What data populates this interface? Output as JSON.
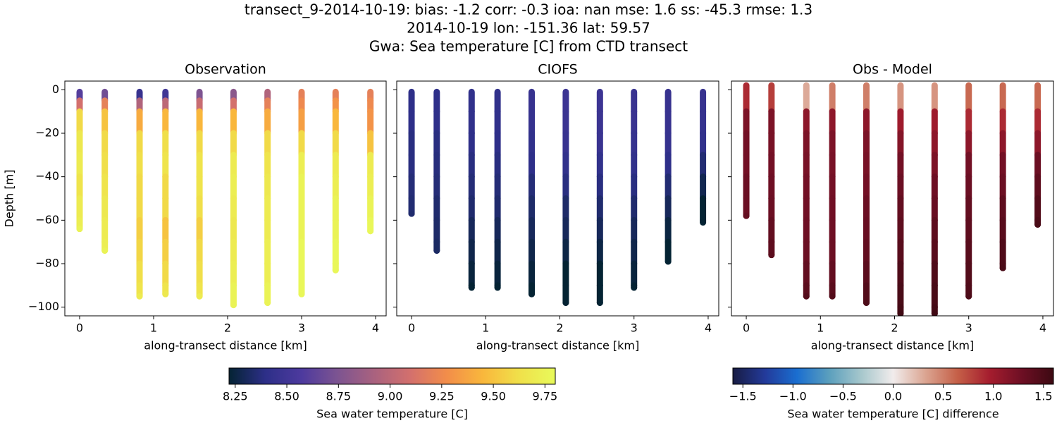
{
  "suptitle": [
    "transect_9-2014-10-19: bias: -1.2  corr: -0.3  ioa: nan  mse: 1.6  ss: -45.3  rmse: 1.3",
    "2014-10-19 lon: -151.36 lat: 59.57",
    "Gwa: Sea temperature [C] from CTD transect"
  ],
  "chart_data": [
    {
      "type": "scatter",
      "title": "Observation",
      "xlabel": "along-transect distance [km]",
      "ylabel": "Depth [m]",
      "colorbar": 0,
      "ytick_labels": true,
      "xlim": [
        -0.2,
        4.143
      ],
      "ylim": [
        -104,
        4
      ],
      "xticks": [
        0,
        1,
        2,
        3,
        4
      ],
      "yticks": [
        0,
        {
          "value": -20,
          "label": "−20"
        },
        {
          "value": -40,
          "label": "−40"
        },
        {
          "value": -60,
          "label": "−60"
        },
        {
          "value": -80,
          "label": "−80"
        },
        {
          "value": -100,
          "label": "−100"
        }
      ],
      "series": [
        {
          "x": 0,
          "y": [
            -1,
            -5,
            -10,
            -20,
            -30,
            -40,
            -50,
            -60,
            -64
          ],
          "values": [
            8.6,
            9.1,
            9.6,
            9.68,
            9.7,
            9.65,
            9.7,
            9.72,
            9.75
          ]
        },
        {
          "x": 0.34,
          "y": [
            -1,
            -5,
            -10,
            -20,
            -30,
            -40,
            -50,
            -60,
            -70,
            -74
          ],
          "values": [
            8.7,
            9.2,
            9.5,
            9.6,
            9.62,
            9.65,
            9.68,
            9.7,
            9.72,
            9.75
          ]
        },
        {
          "x": 0.81,
          "y": [
            -1,
            -5,
            -10,
            -20,
            -30,
            -40,
            -50,
            -60,
            -70,
            -80,
            -90,
            -95
          ],
          "values": [
            8.45,
            8.95,
            9.4,
            9.6,
            9.62,
            9.6,
            9.6,
            9.55,
            9.58,
            9.62,
            9.65,
            9.7
          ]
        },
        {
          "x": 1.16,
          "y": [
            -1,
            -5,
            -10,
            -20,
            -30,
            -40,
            -50,
            -60,
            -70,
            -80,
            -90,
            -94
          ],
          "values": [
            8.5,
            9.0,
            9.45,
            9.62,
            9.65,
            9.6,
            9.6,
            9.5,
            9.55,
            9.6,
            9.65,
            9.68
          ]
        },
        {
          "x": 1.62,
          "y": [
            -1,
            -5,
            -10,
            -20,
            -30,
            -40,
            -50,
            -60,
            -70,
            -80,
            -90,
            -95
          ],
          "values": [
            8.75,
            9.05,
            9.45,
            9.6,
            9.65,
            9.65,
            9.62,
            9.55,
            9.6,
            9.62,
            9.65,
            9.7
          ]
        },
        {
          "x": 2.08,
          "y": [
            -1,
            -5,
            -10,
            -20,
            -30,
            -40,
            -50,
            -60,
            -70,
            -80,
            -90,
            -99
          ],
          "values": [
            8.8,
            9.1,
            9.45,
            9.6,
            9.7,
            9.72,
            9.7,
            9.68,
            9.7,
            9.72,
            9.75,
            9.75
          ]
        },
        {
          "x": 2.54,
          "y": [
            -1,
            -5,
            -10,
            -20,
            -30,
            -40,
            -50,
            -60,
            -70,
            -80,
            -90,
            -98
          ],
          "values": [
            8.95,
            9.2,
            9.4,
            9.6,
            9.65,
            9.68,
            9.7,
            9.7,
            9.72,
            9.72,
            9.75,
            9.75
          ]
        },
        {
          "x": 3.0,
          "y": [
            -1,
            -5,
            -10,
            -20,
            -30,
            -40,
            -50,
            -60,
            -70,
            -80,
            -90,
            -94
          ],
          "values": [
            9.2,
            9.25,
            9.35,
            9.6,
            9.72,
            9.75,
            9.75,
            9.75,
            9.78,
            9.78,
            9.78,
            9.78
          ]
        },
        {
          "x": 3.46,
          "y": [
            -1,
            -5,
            -10,
            -20,
            -30,
            -40,
            -50,
            -60,
            -70,
            -80,
            -83
          ],
          "values": [
            9.2,
            9.3,
            9.45,
            9.6,
            9.7,
            9.72,
            9.75,
            9.75,
            9.78,
            9.78,
            9.78
          ]
        },
        {
          "x": 3.93,
          "y": [
            -1,
            -5,
            -10,
            -20,
            -30,
            -40,
            -50,
            -60,
            -65
          ],
          "values": [
            9.2,
            9.25,
            9.3,
            9.5,
            9.7,
            9.72,
            9.75,
            9.78,
            9.78
          ]
        }
      ]
    },
    {
      "type": "scatter",
      "title": "CIOFS",
      "xlabel": "along-transect distance [km]",
      "colorbar": 0,
      "ytick_labels": false,
      "xlim": [
        -0.2,
        4.143
      ],
      "ylim": [
        -104,
        4
      ],
      "xticks": [
        0,
        1,
        2,
        3,
        4
      ],
      "yticks": [
        0,
        -20,
        -40,
        -60,
        -80,
        -100
      ],
      "series": [
        {
          "x": 0,
          "y": [
            -1,
            -10,
            -20,
            -30,
            -40,
            -50,
            -57
          ],
          "values": [
            8.4,
            8.4,
            8.38,
            8.38,
            8.36,
            8.35,
            8.34
          ]
        },
        {
          "x": 0.34,
          "y": [
            -1,
            -10,
            -20,
            -30,
            -40,
            -50,
            -60,
            -70,
            -74
          ],
          "values": [
            8.4,
            8.4,
            8.38,
            8.37,
            8.36,
            8.34,
            8.33,
            8.32,
            8.32
          ]
        },
        {
          "x": 0.81,
          "y": [
            -1,
            -10,
            -20,
            -30,
            -40,
            -50,
            -60,
            -70,
            -80,
            -90,
            -91
          ],
          "values": [
            8.42,
            8.42,
            8.4,
            8.38,
            8.36,
            8.34,
            8.3,
            8.27,
            8.24,
            8.22,
            8.22
          ]
        },
        {
          "x": 1.16,
          "y": [
            -1,
            -10,
            -20,
            -30,
            -40,
            -50,
            -60,
            -70,
            -80,
            -90,
            -91
          ],
          "values": [
            8.42,
            8.42,
            8.4,
            8.38,
            8.36,
            8.34,
            8.3,
            8.27,
            8.24,
            8.22,
            8.22
          ]
        },
        {
          "x": 1.62,
          "y": [
            -1,
            -10,
            -20,
            -30,
            -40,
            -50,
            -60,
            -70,
            -80,
            -90,
            -94
          ],
          "values": [
            8.45,
            8.44,
            8.42,
            8.4,
            8.36,
            8.33,
            8.3,
            8.27,
            8.24,
            8.2,
            8.2
          ]
        },
        {
          "x": 2.08,
          "y": [
            -1,
            -10,
            -20,
            -30,
            -40,
            -50,
            -60,
            -70,
            -80,
            -90,
            -98
          ],
          "values": [
            8.48,
            8.47,
            8.45,
            8.42,
            8.38,
            8.33,
            8.3,
            8.26,
            8.22,
            8.2,
            8.18
          ]
        },
        {
          "x": 2.54,
          "y": [
            -1,
            -10,
            -20,
            -30,
            -40,
            -50,
            -60,
            -70,
            -80,
            -90,
            -98
          ],
          "values": [
            8.48,
            8.47,
            8.46,
            8.42,
            8.38,
            8.34,
            8.3,
            8.26,
            8.22,
            8.2,
            8.18
          ]
        },
        {
          "x": 3.0,
          "y": [
            -1,
            -10,
            -20,
            -30,
            -40,
            -50,
            -60,
            -70,
            -80,
            -90,
            -91
          ],
          "values": [
            8.46,
            8.46,
            8.44,
            8.42,
            8.38,
            8.34,
            8.3,
            8.27,
            8.24,
            8.22,
            8.22
          ]
        },
        {
          "x": 3.46,
          "y": [
            -1,
            -10,
            -20,
            -30,
            -40,
            -50,
            -60,
            -70,
            -79
          ],
          "values": [
            8.45,
            8.45,
            8.44,
            8.4,
            8.35,
            8.3,
            8.25,
            8.22,
            8.2
          ]
        },
        {
          "x": 3.93,
          "y": [
            -1,
            -10,
            -20,
            -30,
            -40,
            -50,
            -60,
            -61
          ],
          "values": [
            8.45,
            8.44,
            8.42,
            8.35,
            8.28,
            8.22,
            8.2,
            8.19
          ]
        }
      ]
    },
    {
      "type": "scatter",
      "title": "Obs - Model",
      "xlabel": "along-transect distance [km]",
      "colorbar": 1,
      "ytick_labels": false,
      "xlim": [
        -0.2,
        4.143
      ],
      "ylim": [
        -104,
        4
      ],
      "xticks": [
        0,
        1,
        2,
        3,
        4
      ],
      "yticks": [
        0,
        -20,
        -40,
        -60,
        -80,
        -100
      ],
      "series": [
        {
          "x": 0,
          "y": [
            2,
            -10,
            -20,
            -30,
            -40,
            -50,
            -58
          ],
          "values": [
            0.9,
            1.2,
            1.25,
            1.25,
            1.3,
            1.3,
            1.35
          ]
        },
        {
          "x": 0.34,
          "y": [
            2,
            -10,
            -20,
            -30,
            -40,
            -50,
            -60,
            -70,
            -76
          ],
          "values": [
            0.8,
            1.2,
            1.22,
            1.25,
            1.28,
            1.3,
            1.35,
            1.38,
            1.4
          ]
        },
        {
          "x": 0.81,
          "y": [
            2,
            -10,
            -20,
            -30,
            -40,
            -50,
            -60,
            -70,
            -80,
            -90,
            -95
          ],
          "values": [
            0.3,
            1.1,
            1.2,
            1.22,
            1.25,
            1.26,
            1.28,
            1.3,
            1.35,
            1.4,
            1.45
          ]
        },
        {
          "x": 1.16,
          "y": [
            2,
            -10,
            -20,
            -30,
            -40,
            -50,
            -60,
            -70,
            -80,
            -90,
            -95
          ],
          "values": [
            0.5,
            1.1,
            1.2,
            1.22,
            1.25,
            1.27,
            1.28,
            1.3,
            1.35,
            1.4,
            1.45
          ]
        },
        {
          "x": 1.62,
          "y": [
            2,
            -10,
            -20,
            -30,
            -40,
            -50,
            -60,
            -70,
            -80,
            -90,
            -98
          ],
          "values": [
            0.5,
            1.1,
            1.2,
            1.22,
            1.25,
            1.3,
            1.32,
            1.35,
            1.4,
            1.45,
            1.5
          ]
        },
        {
          "x": 2.08,
          "y": [
            2,
            -10,
            -20,
            -30,
            -40,
            -50,
            -60,
            -70,
            -80,
            -90,
            -100,
            -103
          ],
          "values": [
            0.4,
            1.0,
            1.15,
            1.25,
            1.3,
            1.35,
            1.38,
            1.42,
            1.48,
            1.52,
            1.55,
            1.58
          ]
        },
        {
          "x": 2.54,
          "y": [
            2,
            -10,
            -20,
            -30,
            -40,
            -50,
            -60,
            -70,
            -80,
            -90,
            -100,
            -103
          ],
          "values": [
            0.4,
            1.0,
            1.1,
            1.2,
            1.28,
            1.32,
            1.38,
            1.42,
            1.48,
            1.52,
            1.55,
            1.58
          ]
        },
        {
          "x": 3.0,
          "y": [
            2,
            -10,
            -20,
            -30,
            -40,
            -50,
            -60,
            -70,
            -80,
            -90,
            -95
          ],
          "values": [
            0.6,
            0.9,
            1.1,
            1.25,
            1.3,
            1.35,
            1.38,
            1.42,
            1.45,
            1.48,
            1.5
          ]
        },
        {
          "x": 3.46,
          "y": [
            2,
            -10,
            -20,
            -30,
            -40,
            -50,
            -60,
            -70,
            -80,
            -82
          ],
          "values": [
            0.6,
            0.9,
            1.1,
            1.25,
            1.3,
            1.38,
            1.42,
            1.48,
            1.5,
            1.52
          ]
        },
        {
          "x": 3.93,
          "y": [
            2,
            -10,
            -20,
            -30,
            -40,
            -50,
            -60,
            -62
          ],
          "values": [
            0.6,
            0.9,
            1.1,
            1.3,
            1.38,
            1.45,
            1.5,
            1.52
          ]
        }
      ]
    }
  ],
  "colorbars": [
    {
      "label": "Sea water temperature [C]",
      "lim": [
        8.22,
        9.8
      ],
      "ticks": [
        8.25,
        {
          "value": 8.5,
          "label": "8.50"
        },
        8.75,
        {
          "value": 9.0,
          "label": "9.00"
        },
        9.25,
        {
          "value": 9.5,
          "label": "9.50"
        },
        9.75
      ],
      "colors": [
        "#042333",
        "#2d2f88",
        "#4d3a9e",
        "#7d5491",
        "#a9627f",
        "#d3706d",
        "#f28d4a",
        "#f9b73c",
        "#f0e04a",
        "#e8fa5b"
      ]
    },
    {
      "label": "Sea water temperature [C] difference",
      "lim": [
        -1.6,
        1.6
      ],
      "ticks": [
        {
          "value": -1.5,
          "label": "−1.5"
        },
        {
          "value": -1.0,
          "label": "−1.0"
        },
        {
          "value": -0.5,
          "label": "−0.5"
        },
        {
          "value": 0.0,
          "label": "0.0"
        },
        0.5,
        {
          "value": 1.0,
          "label": "1.0"
        },
        1.5
      ],
      "colors": [
        "#181c43",
        "#233a9a",
        "#1a6ed0",
        "#5b9fbd",
        "#a6c7cc",
        "#f1ecec",
        "#dba592",
        "#c56048",
        "#a51d2e",
        "#6e0f24",
        "#3c0912"
      ]
    }
  ]
}
